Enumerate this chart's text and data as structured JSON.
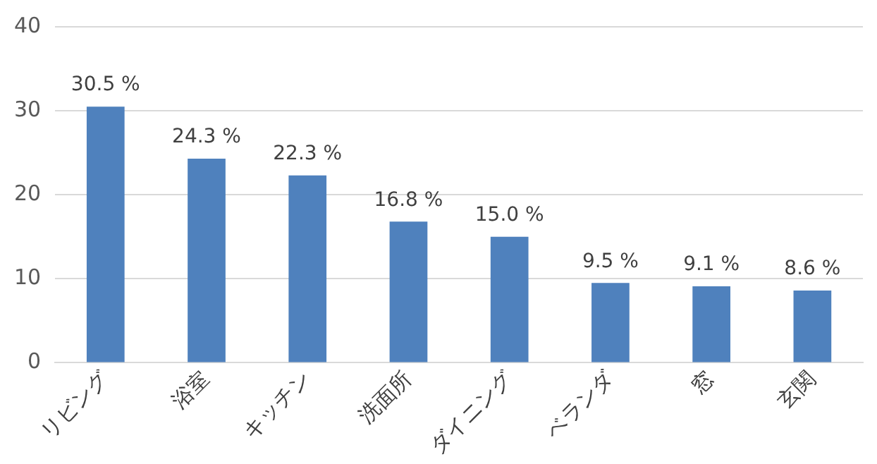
{
  "chart_data": {
    "type": "bar",
    "categories": [
      "リビング",
      "浴室",
      "キッチン",
      "洗面所",
      "ダイニング",
      "ベランダ",
      "窓",
      "玄関"
    ],
    "values": [
      30.5,
      24.3,
      22.3,
      16.8,
      15.0,
      9.5,
      9.1,
      8.6
    ],
    "value_labels": [
      "30.5 %",
      "24.3 %",
      "22.3 %",
      "16.8 %",
      "15.0 %",
      "9.5 %",
      "9.1 %",
      "8.6 %"
    ],
    "color": "#4f81bd",
    "ylim": [
      0,
      40
    ],
    "yticks": [
      0,
      10,
      20,
      30,
      40
    ],
    "grid": "y",
    "legend": false
  }
}
